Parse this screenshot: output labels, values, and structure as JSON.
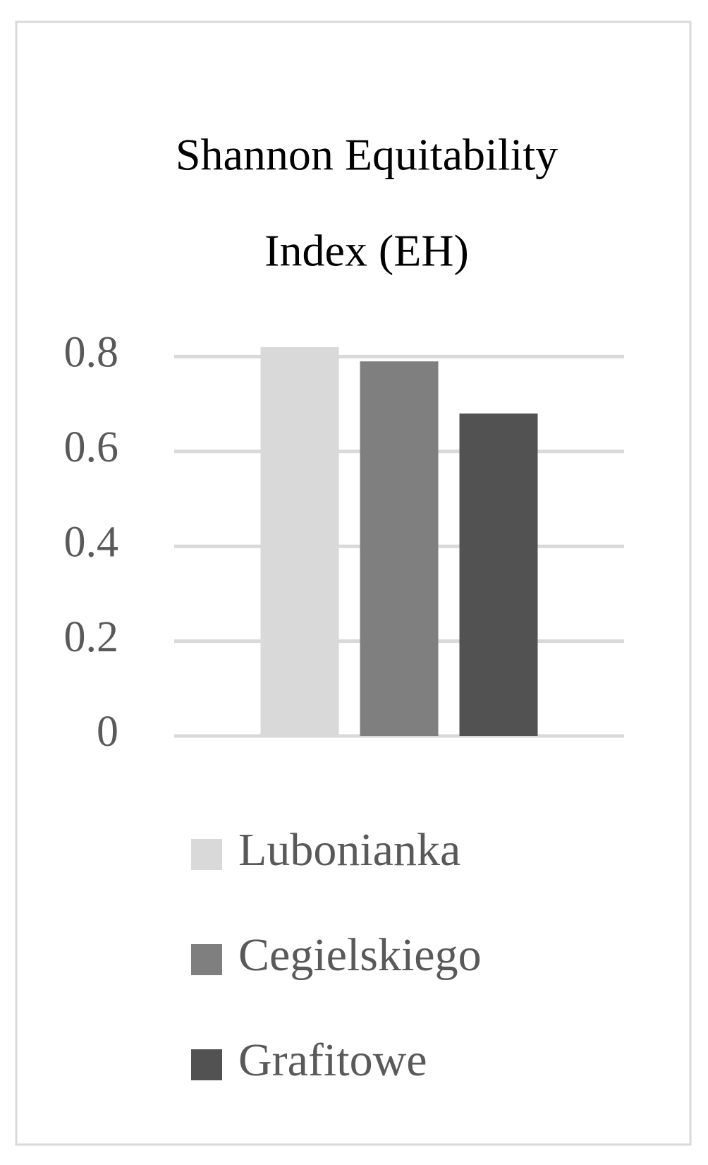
{
  "chart_data": {
    "type": "bar",
    "title": [
      "Shannon Equitability",
      "Index (EH)"
    ],
    "categories": [
      null
    ],
    "series": [
      {
        "name": "Lubonianka",
        "color": "#d9d9d9",
        "values": [
          0.82
        ]
      },
      {
        "name": "Cegielskiego",
        "color": "#7f7f7f",
        "values": [
          0.79
        ]
      },
      {
        "name": "Grafitowe",
        "color": "#525252",
        "values": [
          0.68
        ]
      }
    ],
    "ylim": [
      0,
      0.9
    ],
    "yticks": [
      0,
      0.2,
      0.4,
      0.6,
      0.8
    ],
    "grid": true,
    "legend": "bottom"
  }
}
